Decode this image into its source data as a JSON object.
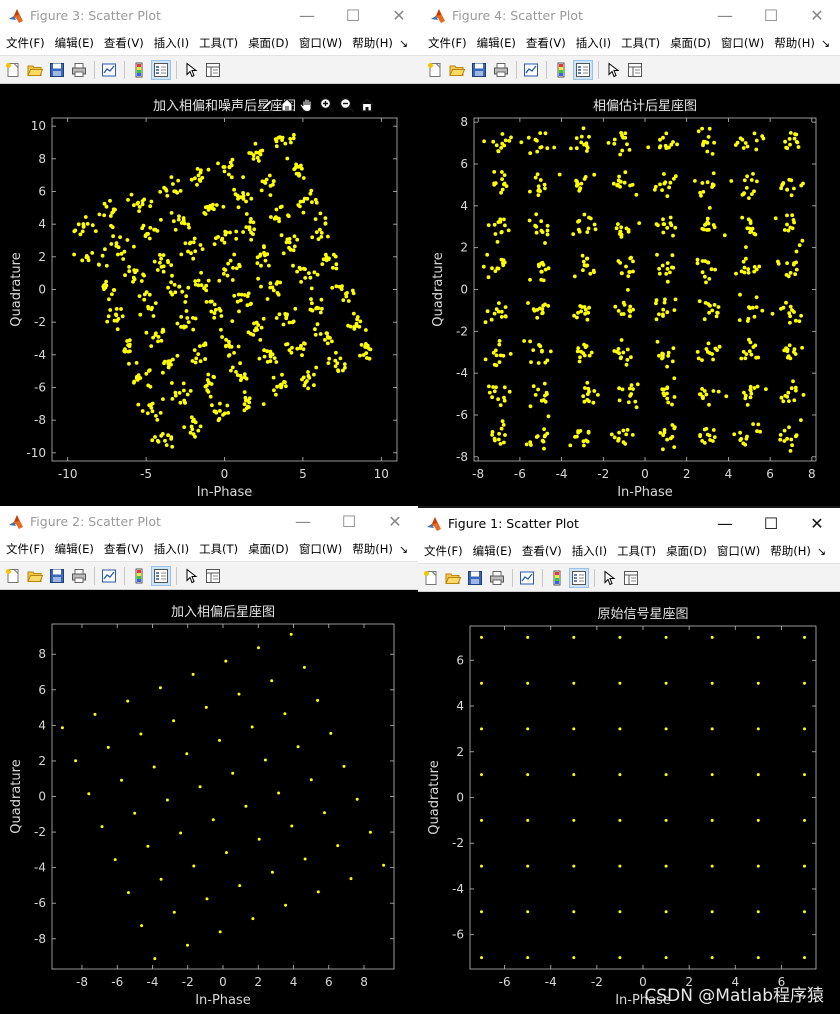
{
  "menu_items": [
    "文件(F)",
    "编辑(E)",
    "查看(V)",
    "插入(I)",
    "工具(T)",
    "桌面(D)",
    "窗口(W)",
    "帮助(H)"
  ],
  "menu_more": "↘",
  "window_controls": {
    "minimize": "—",
    "maximize": "☐",
    "close": "✕"
  },
  "toolbar_icons": [
    "new-figure-icon",
    "open-file-icon",
    "save-icon",
    "print-icon",
    "link-plot-icon",
    "insert-colorbar-icon",
    "insert-legend-icon",
    "edit-plot-arrow-icon",
    "property-inspector-icon"
  ],
  "axes_toolbar_icons": [
    "brush-icon",
    "data-tips-icon",
    "pan-hand-icon",
    "zoom-in-icon",
    "zoom-out-icon",
    "restore-view-icon"
  ],
  "marker_color": "#ffff00",
  "figures": [
    {
      "id": "fig3",
      "window_title": "Figure 3: Scatter Plot",
      "active": false,
      "chart_title": "加入相偏和噪声后星座图",
      "xlabel": "In-Phase",
      "ylabel": "Quadrature",
      "xlim": [
        -11,
        11
      ],
      "ylim": [
        -10.5,
        10.5
      ],
      "xticks": [
        -10,
        -5,
        0,
        5,
        10
      ],
      "yticks": [
        -10,
        -8,
        -6,
        -4,
        -2,
        0,
        2,
        4,
        6,
        8,
        10
      ]
    },
    {
      "id": "fig4",
      "window_title": "Figure 4: Scatter Plot",
      "active": false,
      "chart_title": "相偏估计后星座图",
      "xlabel": "In-Phase",
      "ylabel": "Quadrature",
      "xlim": [
        -8.2,
        8.2
      ],
      "ylim": [
        -8.2,
        8.2
      ],
      "xticks": [
        -8,
        -6,
        -4,
        -2,
        0,
        2,
        4,
        6,
        8
      ],
      "yticks": [
        -8,
        -6,
        -4,
        -2,
        0,
        2,
        4,
        6,
        8
      ]
    },
    {
      "id": "fig2",
      "window_title": "Figure 2: Scatter Plot",
      "active": false,
      "chart_title": "加入相偏后星座图",
      "xlabel": "In-Phase",
      "ylabel": "Quadrature",
      "xlim": [
        -9.7,
        9.7
      ],
      "ylim": [
        -9.7,
        9.7
      ],
      "xticks": [
        -8,
        -6,
        -4,
        -2,
        0,
        2,
        4,
        6,
        8
      ],
      "yticks": [
        -8,
        -6,
        -4,
        -2,
        0,
        2,
        4,
        6,
        8
      ]
    },
    {
      "id": "fig1",
      "window_title": "Figure 1: Scatter Plot",
      "active": true,
      "chart_title": "原始信号星座图",
      "xlabel": "In-Phase",
      "ylabel": "Quadrature",
      "xlim": [
        -7.5,
        7.5
      ],
      "ylim": [
        -7.5,
        7.5
      ],
      "xticks": [
        -6,
        -4,
        -2,
        0,
        2,
        4,
        6
      ],
      "yticks": [
        -6,
        -4,
        -2,
        0,
        2,
        4,
        6
      ]
    }
  ],
  "chart_data": [
    {
      "type": "scatter",
      "figure": "fig3",
      "title": "加入相偏和噪声后星座图",
      "xlabel": "In-Phase",
      "ylabel": "Quadrature",
      "xlim": [
        -11,
        11
      ],
      "ylim": [
        -10.5,
        10.5
      ],
      "levels": [
        -7,
        -5,
        -3,
        -1,
        1,
        3,
        5,
        7
      ],
      "rotation_deg": 22,
      "noise_std": 0.35,
      "points_per_symbol": 12,
      "grid": false
    },
    {
      "type": "scatter",
      "figure": "fig4",
      "title": "相偏估计后星座图",
      "xlabel": "In-Phase",
      "ylabel": "Quadrature",
      "xlim": [
        -8.2,
        8.2
      ],
      "ylim": [
        -8.2,
        8.2
      ],
      "levels": [
        -7,
        -5,
        -3,
        -1,
        1,
        3,
        5,
        7
      ],
      "rotation_deg": 0,
      "noise_std": 0.3,
      "points_per_symbol": 12,
      "grid": false
    },
    {
      "type": "scatter",
      "figure": "fig2",
      "title": "加入相偏后星座图",
      "xlabel": "In-Phase",
      "ylabel": "Quadrature",
      "xlim": [
        -9.7,
        9.7
      ],
      "ylim": [
        -9.7,
        9.7
      ],
      "levels": [
        -7,
        -5,
        -3,
        -1,
        1,
        3,
        5,
        7
      ],
      "rotation_deg": 22,
      "noise_std": 0,
      "points_per_symbol": 1,
      "grid": false
    },
    {
      "type": "scatter",
      "figure": "fig1",
      "title": "原始信号星座图",
      "xlabel": "In-Phase",
      "ylabel": "Quadrature",
      "xlim": [
        -7.5,
        7.5
      ],
      "ylim": [
        -7.5,
        7.5
      ],
      "levels": [
        -7,
        -5,
        -3,
        -1,
        1,
        3,
        5,
        7
      ],
      "rotation_deg": 0,
      "noise_std": 0,
      "points_per_symbol": 1,
      "grid": false
    }
  ],
  "watermark": "CSDN @Matlab程序猿"
}
